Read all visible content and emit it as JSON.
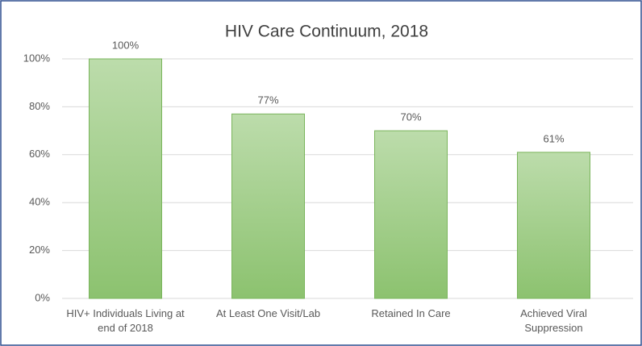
{
  "chart_data": {
    "type": "bar",
    "title": "HIV Care Continuum, 2018",
    "categories": [
      "HIV+ Individuals Living at end of 2018",
      "At Least One Visit/Lab",
      "Retained In Care",
      "Achieved Viral Suppression"
    ],
    "values": [
      100,
      77,
      70,
      61
    ],
    "value_labels": [
      "100%",
      "77%",
      "70%",
      "61%"
    ],
    "color": "#a3cf8a",
    "ylim": [
      0,
      100
    ],
    "yticks": [
      {
        "value": 0,
        "label": "0%"
      },
      {
        "value": 20,
        "label": "20%"
      },
      {
        "value": 40,
        "label": "40%"
      },
      {
        "value": 60,
        "label": "60%"
      },
      {
        "value": 80,
        "label": "80%"
      },
      {
        "value": 100,
        "label": "100%"
      }
    ],
    "grid": true
  }
}
